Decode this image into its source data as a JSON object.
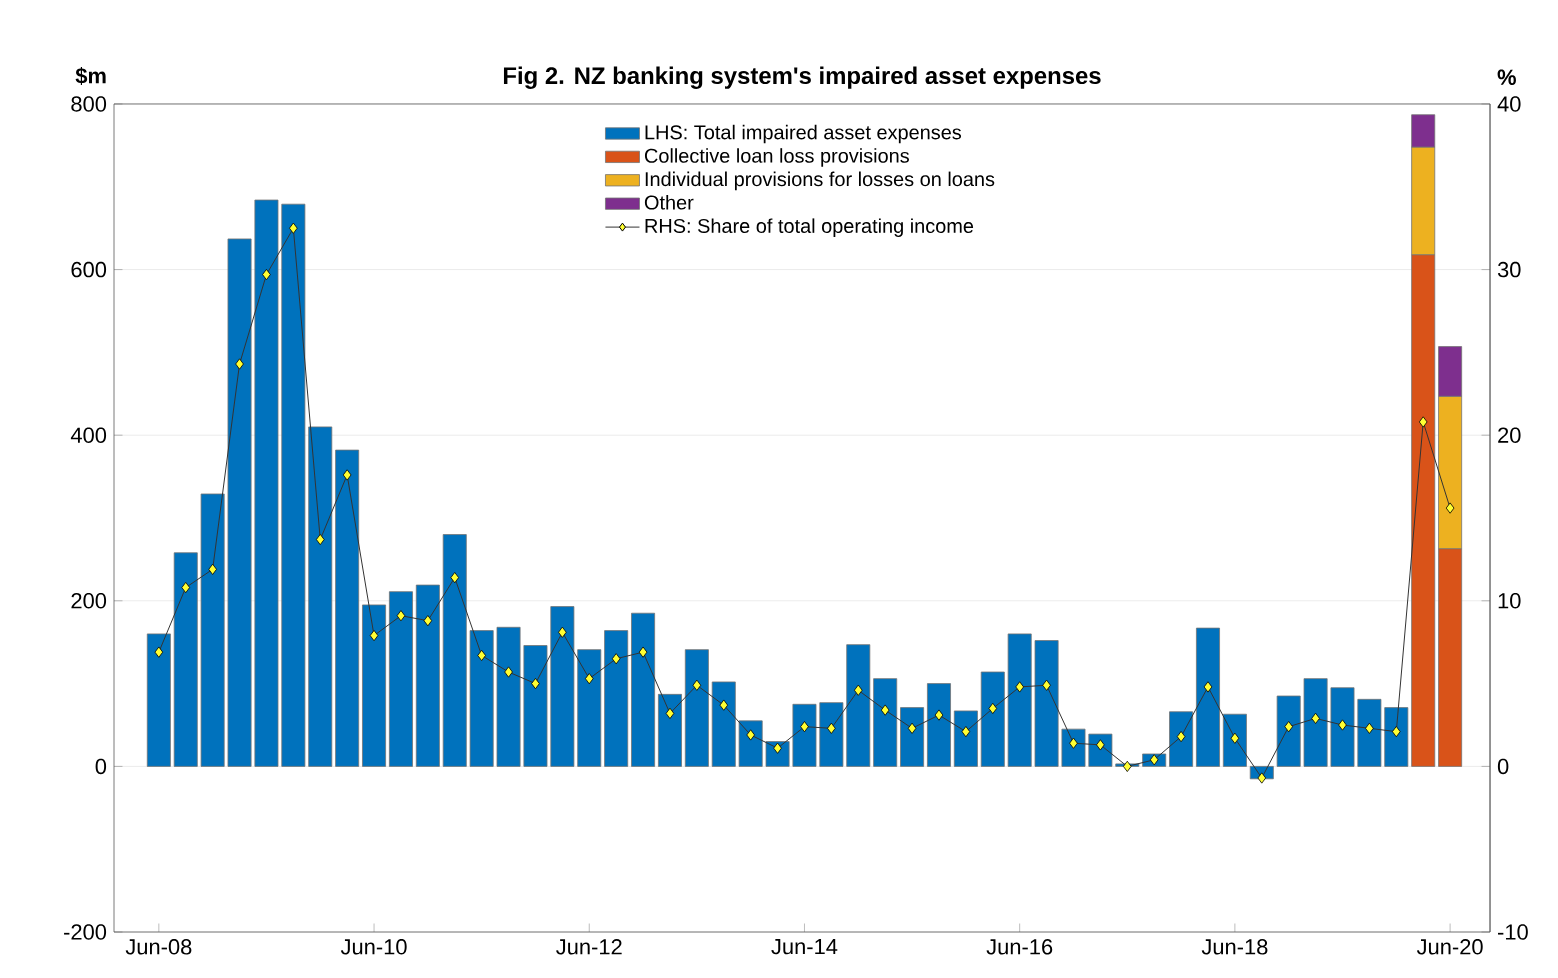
{
  "chart_data": {
    "type": "bar",
    "title": "Fig 2. NZ banking system's impaired asset expenses",
    "ylabel": "$m",
    "y2label": "%",
    "x": [
      "2008-06",
      "2008-09",
      "2008-12",
      "2009-03",
      "2009-06",
      "2009-09",
      "2009-12",
      "2010-03",
      "2010-06",
      "2010-09",
      "2010-12",
      "2011-03",
      "2011-06",
      "2011-09",
      "2011-12",
      "2012-03",
      "2012-06",
      "2012-09",
      "2012-12",
      "2013-03",
      "2013-06",
      "2013-09",
      "2013-12",
      "2014-03",
      "2014-06",
      "2014-09",
      "2014-12",
      "2015-03",
      "2015-06",
      "2015-09",
      "2015-12",
      "2016-03",
      "2016-06",
      "2016-09",
      "2016-12",
      "2017-03",
      "2017-06",
      "2017-09",
      "2017-12",
      "2018-03",
      "2018-06",
      "2018-09",
      "2018-12",
      "2019-03",
      "2019-06",
      "2019-09",
      "2019-12",
      "2020-03",
      "2020-06"
    ],
    "stacked": true,
    "series": [
      {
        "name": "LHS: Total impaired asset expenses",
        "color": "#0072bd",
        "values": [
          160,
          258,
          329,
          637,
          684,
          679,
          410,
          382,
          195,
          211,
          219,
          280,
          164,
          168,
          146,
          193,
          141,
          164,
          185,
          87,
          141,
          102,
          55,
          30,
          75,
          77,
          147,
          106,
          71,
          100,
          67,
          114,
          160,
          152,
          45,
          39,
          3,
          15,
          66,
          167,
          63,
          -15,
          85,
          106,
          95,
          81,
          71,
          null,
          null
        ]
      },
      {
        "name": "Collective loan loss provisions",
        "color": "#d95319",
        "values": [
          null,
          null,
          null,
          null,
          null,
          null,
          null,
          null,
          null,
          null,
          null,
          null,
          null,
          null,
          null,
          null,
          null,
          null,
          null,
          null,
          null,
          null,
          null,
          null,
          null,
          null,
          null,
          null,
          null,
          null,
          null,
          null,
          null,
          null,
          null,
          null,
          null,
          null,
          null,
          null,
          null,
          null,
          null,
          null,
          null,
          null,
          null,
          618,
          263
        ]
      },
      {
        "name": "Individual provisions for losses on loans",
        "color": "#edb120",
        "values": [
          null,
          null,
          null,
          null,
          null,
          null,
          null,
          null,
          null,
          null,
          null,
          null,
          null,
          null,
          null,
          null,
          null,
          null,
          null,
          null,
          null,
          null,
          null,
          null,
          null,
          null,
          null,
          null,
          null,
          null,
          null,
          null,
          null,
          null,
          null,
          null,
          null,
          null,
          null,
          null,
          null,
          null,
          null,
          null,
          null,
          null,
          null,
          130,
          184
        ]
      },
      {
        "name": "Other",
        "color": "#7e2f8e",
        "values": [
          null,
          null,
          null,
          null,
          null,
          null,
          null,
          null,
          null,
          null,
          null,
          null,
          null,
          null,
          null,
          null,
          null,
          null,
          null,
          null,
          null,
          null,
          null,
          null,
          null,
          null,
          null,
          null,
          null,
          null,
          null,
          null,
          null,
          null,
          null,
          null,
          null,
          null,
          null,
          null,
          null,
          null,
          null,
          null,
          null,
          null,
          null,
          39,
          60
        ]
      },
      {
        "name": "RHS: Share of total operating income",
        "type": "line",
        "axis": "y2",
        "color": "#ffff33",
        "values": [
          6.9,
          10.8,
          11.9,
          24.3,
          29.7,
          32.5,
          13.7,
          17.6,
          7.9,
          9.1,
          8.8,
          11.4,
          6.7,
          5.7,
          5.0,
          8.1,
          5.3,
          6.5,
          6.9,
          3.2,
          4.9,
          3.7,
          1.9,
          1.1,
          2.4,
          2.3,
          4.6,
          3.4,
          2.3,
          3.1,
          2.1,
          3.5,
          4.8,
          4.9,
          1.4,
          1.3,
          0,
          0.4,
          1.8,
          4.8,
          1.7,
          -0.7,
          2.4,
          2.9,
          2.5,
          2.3,
          2.1,
          20.8,
          15.6
        ]
      }
    ],
    "marker": "diamond",
    "legend": "top",
    "grid": "y",
    "xlim": [
      "2008-01",
      "2020-10-15"
    ],
    "xticks": [
      {
        "value": "2008-06",
        "label": "Jun-08"
      },
      {
        "value": "2010-06",
        "label": "Jun-10"
      },
      {
        "value": "2012-06",
        "label": "Jun-12"
      },
      {
        "value": "2014-06",
        "label": "Jun-14"
      },
      {
        "value": "2016-06",
        "label": "Jun-16"
      },
      {
        "value": "2018-06",
        "label": "Jun-18"
      },
      {
        "value": "2020-06",
        "label": "Jun-20"
      }
    ],
    "ylim": [
      -200,
      800
    ],
    "yticks": [
      -200,
      0,
      200,
      400,
      600,
      800
    ],
    "y2lim": [
      -10,
      40
    ],
    "y2ticks": [
      -10,
      0,
      10,
      20,
      30,
      40
    ]
  }
}
